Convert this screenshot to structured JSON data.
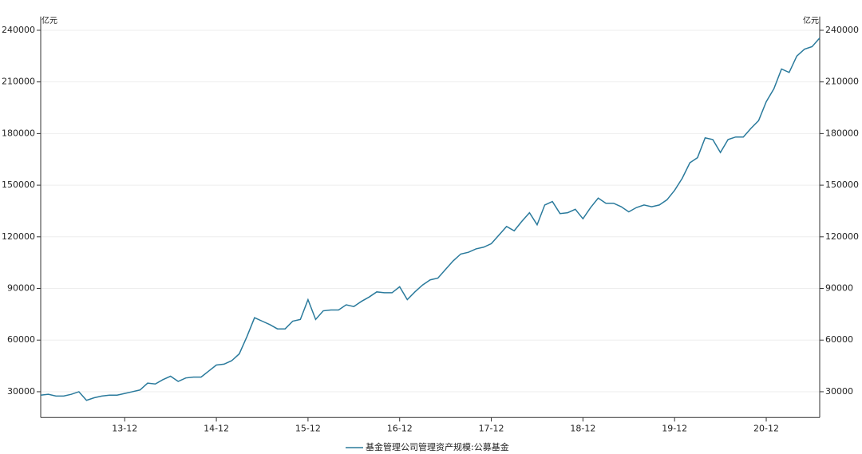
{
  "chart_data": {
    "type": "line",
    "y_label": "亿元",
    "y2_label": "亿元",
    "categories": [
      null,
      null,
      null,
      null,
      null,
      null,
      null,
      null,
      null,
      null,
      null,
      "13-12",
      null,
      null,
      null,
      null,
      null,
      null,
      null,
      null,
      null,
      null,
      null,
      "14-12",
      null,
      null,
      null,
      null,
      null,
      null,
      null,
      null,
      null,
      null,
      null,
      "15-12",
      null,
      null,
      null,
      null,
      null,
      null,
      null,
      null,
      null,
      null,
      null,
      "16-12",
      null,
      null,
      null,
      null,
      null,
      null,
      null,
      null,
      null,
      null,
      null,
      "17-12",
      null,
      null,
      null,
      null,
      null,
      null,
      null,
      null,
      null,
      null,
      null,
      "18-12",
      null,
      null,
      null,
      null,
      null,
      null,
      null,
      null,
      null,
      null,
      null,
      "19-12",
      null,
      null,
      null,
      null,
      null,
      null,
      null,
      null,
      null,
      null,
      null,
      "20-12",
      null,
      null,
      null,
      null,
      null,
      null,
      null
    ],
    "series": [
      {
        "name": "基金管理公司管理资产规模:公募基金",
        "color": "#2a7a9c",
        "values": [
          28000,
          28500,
          27500,
          27500,
          28500,
          30000,
          25000,
          26500,
          27500,
          28000,
          28000,
          29000,
          30000,
          31000,
          35000,
          34500,
          37000,
          39000,
          36000,
          38000,
          38500,
          38500,
          42000,
          45500,
          46000,
          48000,
          52000,
          62000,
          73000,
          71000,
          69000,
          66500,
          66500,
          71000,
          72000,
          83500,
          72000,
          77000,
          77500,
          77500,
          80500,
          79500,
          82500,
          85000,
          88000,
          87500,
          87500,
          91000,
          83500,
          88000,
          92000,
          95000,
          96000,
          101000,
          106000,
          110000,
          111000,
          113000,
          114000,
          116000,
          121000,
          126000,
          123500,
          129000,
          134000,
          127000,
          138500,
          140500,
          133500,
          134000,
          136000,
          130500,
          137000,
          142500,
          139500,
          139500,
          137500,
          134500,
          137000,
          138500,
          137500,
          138500,
          141500,
          147000,
          154000,
          163000,
          166000,
          177500,
          176500,
          169000,
          176500,
          178000,
          178000,
          183000,
          187500,
          198500,
          206000,
          217500,
          215500,
          225000,
          229000,
          230500,
          235500
        ]
      }
    ],
    "ylim": [
      15000,
      248000
    ],
    "yticks": [
      30000,
      60000,
      90000,
      120000,
      150000,
      180000,
      210000,
      240000
    ],
    "y2lim": [
      15000,
      248000
    ],
    "y2ticks": [
      30000,
      60000,
      90000,
      120000,
      150000,
      180000,
      210000,
      240000
    ],
    "grid": true
  }
}
